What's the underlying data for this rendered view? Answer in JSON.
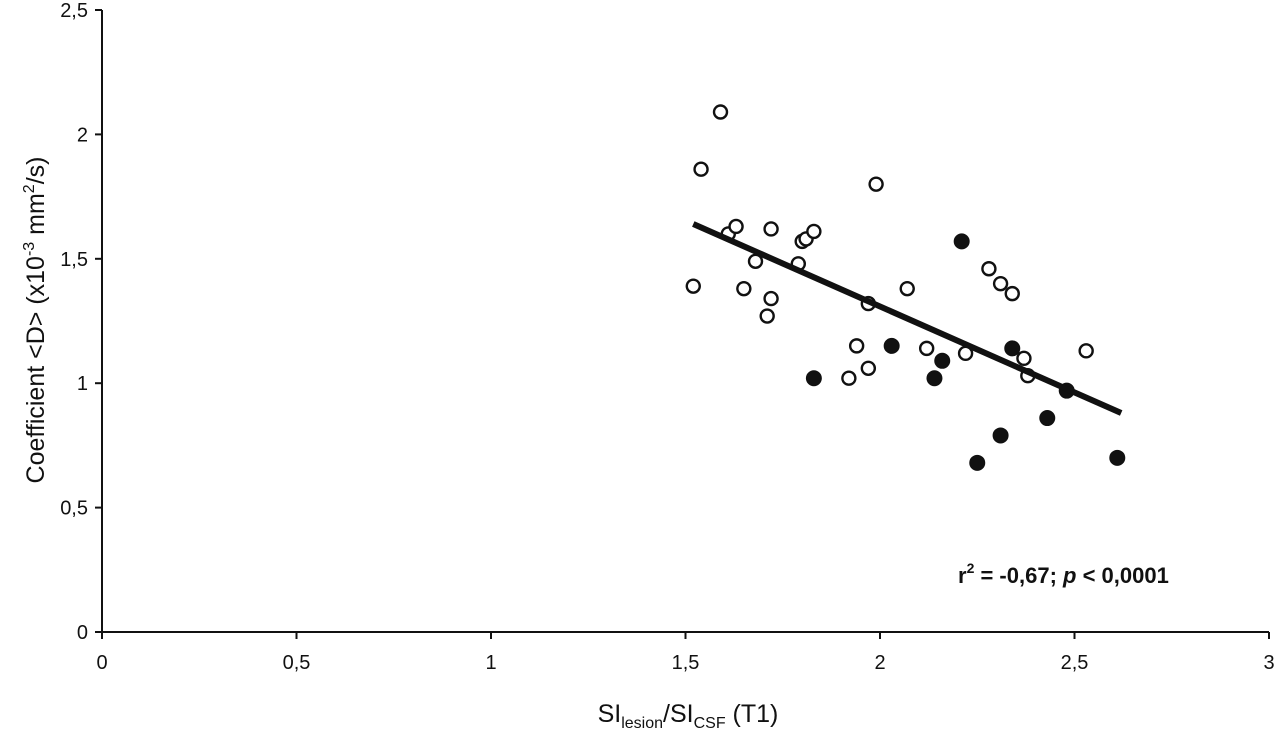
{
  "chart_data": {
    "type": "scatter",
    "title": "",
    "xlabel": {
      "base1": "SI",
      "sub1": "lesion",
      "mid": "/SI",
      "sub2": "CSF",
      "suffix": " (T1)"
    },
    "ylabel": {
      "prefix": "Coefficient <D> (x10",
      "sup1": "-3",
      "mid": " mm",
      "sup2": "2",
      "suffix": "/s)"
    },
    "xlim": [
      0,
      3
    ],
    "ylim": [
      0,
      2.5
    ],
    "xticks": [
      {
        "value": 0,
        "label": "0"
      },
      {
        "value": 0.5,
        "label": "0,5"
      },
      {
        "value": 1,
        "label": "1"
      },
      {
        "value": 1.5,
        "label": "1,5"
      },
      {
        "value": 2,
        "label": "2"
      },
      {
        "value": 2.5,
        "label": "2,5"
      },
      {
        "value": 3,
        "label": "3"
      }
    ],
    "yticks": [
      {
        "value": 0,
        "label": "0"
      },
      {
        "value": 0.5,
        "label": "0,5"
      },
      {
        "value": 1,
        "label": "1"
      },
      {
        "value": 1.5,
        "label": "1,5"
      },
      {
        "value": 2,
        "label": "2"
      },
      {
        "value": 2.5,
        "label": "2,5"
      }
    ],
    "grid": false,
    "series": [
      {
        "marker": "open-circle",
        "color": "#111111",
        "points": [
          [
            1.52,
            1.39
          ],
          [
            1.54,
            1.86
          ],
          [
            1.59,
            2.09
          ],
          [
            1.61,
            1.6
          ],
          [
            1.63,
            1.63
          ],
          [
            1.65,
            1.38
          ],
          [
            1.68,
            1.49
          ],
          [
            1.71,
            1.27
          ],
          [
            1.72,
            1.34
          ],
          [
            1.72,
            1.62
          ],
          [
            1.79,
            1.48
          ],
          [
            1.8,
            1.57
          ],
          [
            1.81,
            1.58
          ],
          [
            1.83,
            1.61
          ],
          [
            1.92,
            1.02
          ],
          [
            1.94,
            1.15
          ],
          [
            1.97,
            1.06
          ],
          [
            1.97,
            1.32
          ],
          [
            1.99,
            1.8
          ],
          [
            2.07,
            1.38
          ],
          [
            2.12,
            1.14
          ],
          [
            2.22,
            1.12
          ],
          [
            2.28,
            1.46
          ],
          [
            2.31,
            1.4
          ],
          [
            2.34,
            1.36
          ],
          [
            2.37,
            1.1
          ],
          [
            2.38,
            1.03
          ],
          [
            2.53,
            1.13
          ]
        ]
      },
      {
        "marker": "filled-circle",
        "color": "#111111",
        "points": [
          [
            1.83,
            1.02
          ],
          [
            2.03,
            1.15
          ],
          [
            2.14,
            1.02
          ],
          [
            2.16,
            1.09
          ],
          [
            2.21,
            1.57
          ],
          [
            2.25,
            0.68
          ],
          [
            2.31,
            0.79
          ],
          [
            2.34,
            1.14
          ],
          [
            2.43,
            0.86
          ],
          [
            2.48,
            0.97
          ],
          [
            2.61,
            0.7
          ]
        ]
      }
    ],
    "trendline": {
      "x": [
        1.52,
        2.62
      ],
      "y": [
        1.64,
        0.88
      ]
    },
    "annotation": {
      "r": "r",
      "sup": "2",
      "stat": " = -0,67; ",
      "p": "p",
      "pval": " < 0,0001"
    }
  }
}
